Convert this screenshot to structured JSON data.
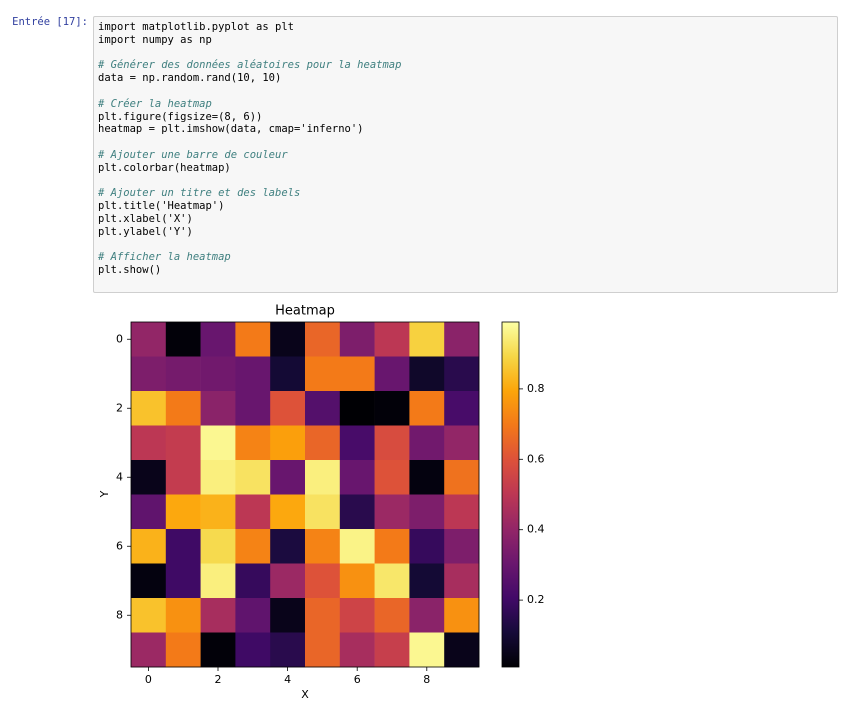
{
  "cell": {
    "prompt": "Entrée [17]:",
    "code_blocks": [
      [
        "import matplotlib.pyplot as plt",
        "import numpy as np"
      ],
      [
        "# Générer des données aléatoires pour la heatmap",
        "data = np.random.rand(10, 10)"
      ],
      [
        "# Créer la heatmap",
        "plt.figure(figsize=(8, 6))",
        "heatmap = plt.imshow(data, cmap='inferno')"
      ],
      [
        "# Ajouter une barre de couleur",
        "plt.colorbar(heatmap)"
      ],
      [
        "# Ajouter un titre et des labels",
        "plt.title('Heatmap')",
        "plt.xlabel('X')",
        "plt.ylabel('Y')"
      ],
      [
        "# Afficher la heatmap",
        "plt.show()"
      ]
    ]
  },
  "chart_data": {
    "type": "heatmap",
    "title": "Heatmap",
    "xlabel": "X",
    "ylabel": "Y",
    "colormap": "inferno",
    "values": [
      [
        0.4,
        0.02,
        0.3,
        0.7,
        0.05,
        0.65,
        0.35,
        0.5,
        0.88,
        0.38
      ],
      [
        0.35,
        0.33,
        0.32,
        0.3,
        0.1,
        0.7,
        0.7,
        0.3,
        0.08,
        0.15
      ],
      [
        0.85,
        0.7,
        0.38,
        0.3,
        0.6,
        0.25,
        0.01,
        0.02,
        0.7,
        0.22
      ],
      [
        0.5,
        0.52,
        0.97,
        0.72,
        0.78,
        0.65,
        0.22,
        0.58,
        0.32,
        0.4
      ],
      [
        0.05,
        0.52,
        0.95,
        0.92,
        0.3,
        0.95,
        0.3,
        0.6,
        0.03,
        0.68
      ],
      [
        0.28,
        0.8,
        0.82,
        0.5,
        0.8,
        0.92,
        0.15,
        0.42,
        0.35,
        0.5
      ],
      [
        0.82,
        0.2,
        0.9,
        0.72,
        0.12,
        0.72,
        0.96,
        0.7,
        0.18,
        0.35
      ],
      [
        0.03,
        0.2,
        0.95,
        0.18,
        0.42,
        0.6,
        0.75,
        0.93,
        0.1,
        0.45
      ],
      [
        0.85,
        0.75,
        0.45,
        0.28,
        0.05,
        0.65,
        0.55,
        0.65,
        0.38,
        0.75
      ],
      [
        0.42,
        0.7,
        0.02,
        0.2,
        0.15,
        0.65,
        0.45,
        0.53,
        0.97,
        0.05
      ]
    ],
    "xlim": [
      -0.5,
      9.5
    ],
    "ylim": [
      9.5,
      -0.5
    ],
    "xticks": [
      0,
      2,
      4,
      6,
      8
    ],
    "yticks": [
      0,
      2,
      4,
      6,
      8
    ],
    "colorbar": {
      "lim": [
        0.01,
        0.99
      ],
      "ticks": [
        0.2,
        0.4,
        0.6,
        0.8
      ]
    }
  }
}
